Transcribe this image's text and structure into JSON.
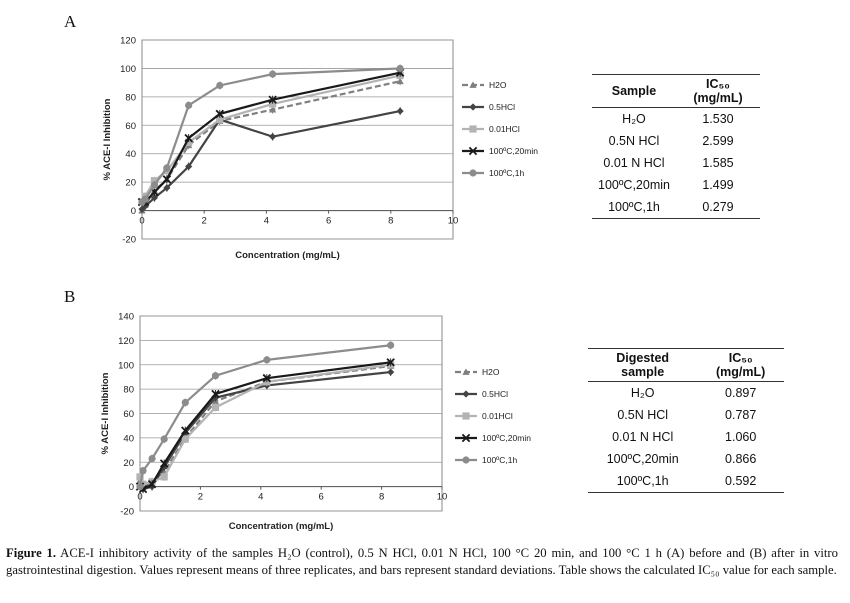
{
  "caption": {
    "label": "Figure 1.",
    "text": "ACE-I inhibitory activity of the samples H₂O (control), 0.5 N HCl, 0.01 N HCl, 100 °C 20 min, and 100 °C 1 h (A) before and (B) after in vitro gastrointestinal digestion. Values represent means of three replicates, and bars represent standard deviations. Table shows the calculated IC₅₀ value for each sample."
  },
  "tables": {
    "a": {
      "headers": [
        "Sample",
        "IC₅₀ (mg/mL)"
      ],
      "rows": [
        [
          "H₂O",
          "1.530"
        ],
        [
          "0.5N HCl",
          "2.599"
        ],
        [
          "0.01 N HCl",
          "1.585"
        ],
        [
          "100ºC,20min",
          "1.499"
        ],
        [
          "100ºC,1h",
          "0.279"
        ]
      ]
    },
    "b": {
      "headers": [
        "Digested sample",
        "IC₅₀ (mg/mL)"
      ],
      "rows": [
        [
          "H₂O",
          "0.897"
        ],
        [
          "0.5N HCl",
          "0.787"
        ],
        [
          "0.01 N HCl",
          "1.060"
        ],
        [
          "100ºC,20min",
          "0.866"
        ],
        [
          "100ºC,1h",
          "0.592"
        ]
      ]
    }
  },
  "chart_data": [
    {
      "panel": "A",
      "type": "line",
      "xlabel": "Concentration (mg/mL)",
      "ylabel": "% ACE-I Inhibition",
      "xlim": [
        0,
        10
      ],
      "ylim": [
        -20,
        120
      ],
      "xticks": [
        0,
        2,
        4,
        6,
        8,
        10
      ],
      "yticks": [
        -20,
        0,
        20,
        40,
        60,
        80,
        100,
        120
      ],
      "grid": true,
      "legend_position": "right",
      "series": [
        {
          "name": "H2O",
          "color": "#7f7f7f",
          "marker": "triangle",
          "dash": true,
          "x": [
            0.0,
            0.1,
            0.4,
            0.8,
            1.5,
            2.5,
            4.2,
            8.3
          ],
          "y": [
            0,
            4,
            14,
            22,
            46,
            63,
            71,
            91
          ]
        },
        {
          "name": "0.5HCl",
          "color": "#444444",
          "marker": "diamond",
          "dash": false,
          "x": [
            0.0,
            0.1,
            0.4,
            0.8,
            1.5,
            2.5,
            4.2,
            8.3
          ],
          "y": [
            1,
            3,
            9,
            16,
            31,
            64,
            52,
            70
          ]
        },
        {
          "name": "0.01HCl",
          "color": "#b3b3b3",
          "marker": "square",
          "dash": false,
          "x": [
            0.0,
            0.1,
            0.4,
            0.8,
            1.5,
            2.5,
            4.2,
            8.3
          ],
          "y": [
            6,
            10,
            21,
            28,
            48,
            64,
            75,
            95
          ]
        },
        {
          "name": "100ºC,20min",
          "color": "#1a1a1a",
          "marker": "x",
          "dash": false,
          "x": [
            0.0,
            0.1,
            0.4,
            0.8,
            1.5,
            2.5,
            4.2,
            8.3
          ],
          "y": [
            6,
            6,
            13,
            22,
            51,
            68,
            78,
            97
          ]
        },
        {
          "name": "100ºC,1h",
          "color": "#8c8c8c",
          "marker": "circle",
          "dash": false,
          "x": [
            0.0,
            0.1,
            0.4,
            0.8,
            1.5,
            2.5,
            4.2,
            8.3
          ],
          "y": [
            6,
            8,
            18,
            30,
            74,
            88,
            96,
            100
          ]
        }
      ]
    },
    {
      "panel": "B",
      "type": "line",
      "xlabel": "Concentration (mg/mL)",
      "ylabel": "% ACE-I Inhibition",
      "xlim": [
        0,
        10
      ],
      "ylim": [
        -20,
        140
      ],
      "xticks": [
        0,
        2,
        4,
        6,
        8,
        10
      ],
      "yticks": [
        -20,
        0,
        20,
        40,
        60,
        80,
        100,
        120,
        140
      ],
      "grid": true,
      "legend_position": "right",
      "series": [
        {
          "name": "H2O",
          "color": "#7f7f7f",
          "marker": "triangle",
          "dash": true,
          "x": [
            0.0,
            0.1,
            0.4,
            0.8,
            1.5,
            2.5,
            4.2,
            8.3
          ],
          "y": [
            5,
            0,
            4,
            12,
            40,
            70,
            86,
            99
          ]
        },
        {
          "name": "0.5HCl",
          "color": "#444444",
          "marker": "diamond",
          "dash": false,
          "x": [
            0.0,
            0.1,
            0.4,
            0.8,
            1.5,
            2.5,
            4.2,
            8.3
          ],
          "y": [
            0,
            -2,
            0,
            16,
            44,
            73,
            83,
            94
          ]
        },
        {
          "name": "0.01HCl",
          "color": "#b3b3b3",
          "marker": "square",
          "dash": false,
          "x": [
            0.0,
            0.1,
            0.4,
            0.8,
            1.5,
            2.5,
            4.2,
            8.3
          ],
          "y": [
            8,
            2,
            4,
            8,
            39,
            65,
            86,
            100
          ]
        },
        {
          "name": "100ºC,20min",
          "color": "#1a1a1a",
          "marker": "x",
          "dash": false,
          "x": [
            0.0,
            0.1,
            0.4,
            0.8,
            1.5,
            2.5,
            4.2,
            8.3
          ],
          "y": [
            0,
            -2,
            2,
            19,
            46,
            76,
            89,
            102
          ]
        },
        {
          "name": "100ºC,1h",
          "color": "#8c8c8c",
          "marker": "circle",
          "dash": false,
          "x": [
            0.0,
            0.1,
            0.4,
            0.8,
            1.5,
            2.5,
            4.2,
            8.3
          ],
          "y": [
            0,
            13,
            23,
            39,
            69,
            91,
            104,
            116
          ]
        }
      ]
    }
  ]
}
